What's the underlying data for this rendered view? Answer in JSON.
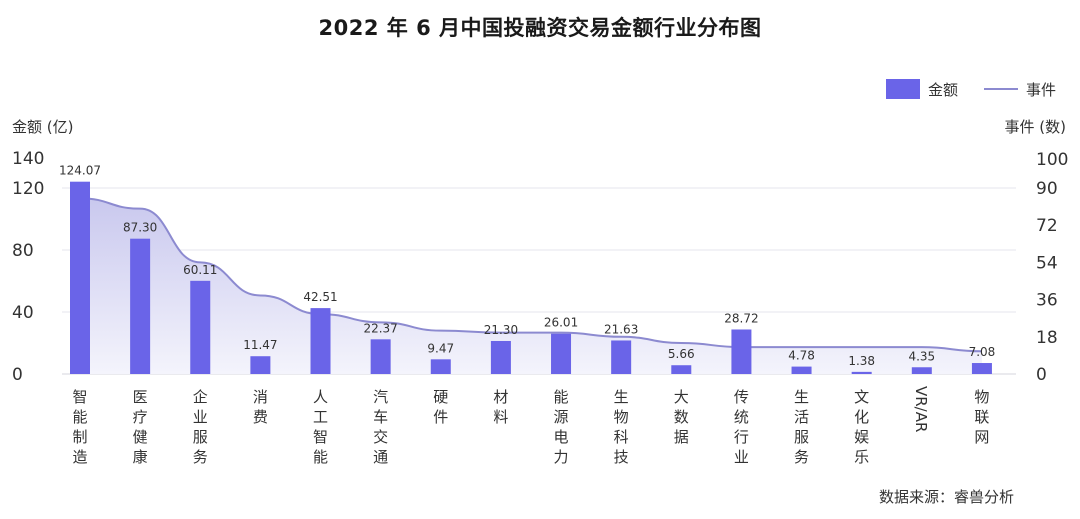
{
  "title": "2022 年 6 月中国投融资交易金额行业分布图",
  "source": "数据来源：睿兽分析",
  "colors": {
    "bar": "#6A64E8",
    "line": "#8C8AD0",
    "area_top": "#C9C8EE",
    "area_bottom": "#F4F4FC",
    "grid": "#E6E6EE"
  },
  "chart_data": {
    "type": "bar",
    "categories": [
      "智能制造",
      "医疗健康",
      "企业服务",
      "消费",
      "人工智能",
      "汽车交通",
      "硬件",
      "材料",
      "能源电力",
      "生物科技",
      "大数据",
      "传统行业",
      "生活服务",
      "文化娱乐",
      "VR/AR",
      "物联网"
    ],
    "series": [
      {
        "name": "金额",
        "type": "bar",
        "axis": "left",
        "values": [
          124.07,
          87.3,
          60.11,
          11.47,
          42.51,
          22.37,
          9.47,
          21.3,
          26.01,
          21.63,
          5.66,
          28.72,
          4.78,
          1.38,
          4.35,
          7.08
        ],
        "labels": [
          "124.07",
          "87.30",
          "60.11",
          "11.47",
          "42.51",
          "22.37",
          "9.47",
          "21.30",
          "26.01",
          "21.63",
          "5.66",
          "28.72",
          "4.78",
          "1.38",
          "4.35",
          "7.08"
        ]
      },
      {
        "name": "事件",
        "type": "area",
        "axis": "right",
        "values": [
          85,
          80,
          54,
          38,
          29,
          25,
          21,
          20,
          20,
          18,
          15,
          13,
          13,
          13,
          13,
          11
        ]
      }
    ],
    "y_left": {
      "label": "金额 (亿)",
      "range": [
        0,
        140
      ],
      "ticks": [
        0,
        40,
        80,
        120,
        140
      ]
    },
    "y_right": {
      "label": "事件 (数)",
      "range": [
        0,
        100
      ],
      "ticks": [
        0,
        18,
        36,
        54,
        72,
        90,
        100
      ]
    },
    "grid": true,
    "legend": "top-right"
  }
}
